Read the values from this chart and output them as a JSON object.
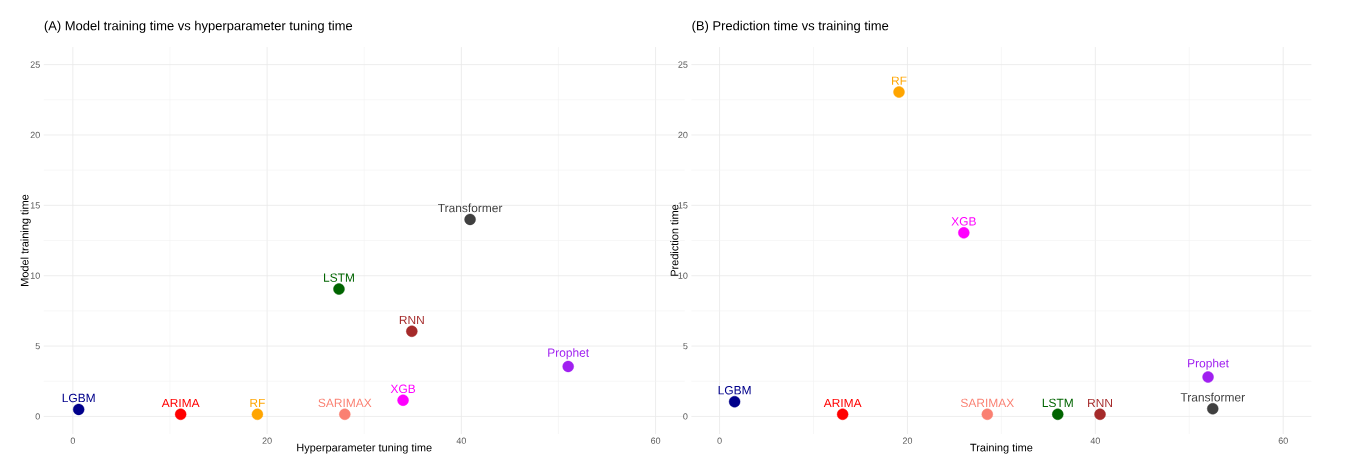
{
  "chart_data": [
    {
      "type": "scatter",
      "title": "(A) Model training time vs hyperparameter tuning time",
      "xlabel": "Hyperparameter tuning time",
      "ylabel": "Model training time",
      "xlim": [
        -3,
        63
      ],
      "ylim": [
        -1.25,
        26.25
      ],
      "xticks": [
        0,
        20,
        40,
        60
      ],
      "yticks": [
        0,
        5,
        10,
        15,
        20,
        25
      ],
      "grid": true,
      "marker": "circle",
      "series": [
        {
          "name": "LGBM",
          "color": "#00008b",
          "x": [
            0.6
          ],
          "values": [
            0.5
          ]
        },
        {
          "name": "ARIMA",
          "color": "#ff0000",
          "x": [
            11.1
          ],
          "values": [
            0.15
          ]
        },
        {
          "name": "RF",
          "color": "#ffa500",
          "x": [
            19.0
          ],
          "values": [
            0.15
          ]
        },
        {
          "name": "SARIMAX",
          "color": "#fa8072",
          "x": [
            28.0
          ],
          "values": [
            0.15
          ]
        },
        {
          "name": "XGB",
          "color": "#ff00ff",
          "x": [
            34.0
          ],
          "values": [
            1.15
          ]
        },
        {
          "name": "LSTM",
          "color": "#006400",
          "x": [
            27.4
          ],
          "values": [
            9.05
          ]
        },
        {
          "name": "RNN",
          "color": "#a52a2a",
          "x": [
            34.9
          ],
          "values": [
            6.05
          ]
        },
        {
          "name": "Transformer",
          "color": "#404040",
          "x": [
            40.9
          ],
          "values": [
            14.0
          ]
        },
        {
          "name": "Prophet",
          "color": "#a020f0",
          "x": [
            51.0
          ],
          "values": [
            3.55
          ]
        }
      ]
    },
    {
      "type": "scatter",
      "title": "(B) Prediction time vs training time",
      "xlabel": "Training time",
      "ylabel": "Prediction time",
      "xlim": [
        -3,
        63
      ],
      "ylim": [
        -1.25,
        26.25
      ],
      "xticks": [
        0,
        20,
        40,
        60
      ],
      "yticks": [
        0,
        5,
        10,
        15,
        20,
        25
      ],
      "grid": true,
      "marker": "circle",
      "series": [
        {
          "name": "LGBM",
          "color": "#00008b",
          "x": [
            1.6
          ],
          "values": [
            1.05
          ]
        },
        {
          "name": "ARIMA",
          "color": "#ff0000",
          "x": [
            13.1
          ],
          "values": [
            0.15
          ]
        },
        {
          "name": "RF",
          "color": "#ffa500",
          "x": [
            19.1
          ],
          "values": [
            23.05
          ]
        },
        {
          "name": "SARIMAX",
          "color": "#fa8072",
          "x": [
            28.5
          ],
          "values": [
            0.15
          ]
        },
        {
          "name": "XGB",
          "color": "#ff00ff",
          "x": [
            26.0
          ],
          "values": [
            13.05
          ]
        },
        {
          "name": "LSTM",
          "color": "#006400",
          "x": [
            36.0
          ],
          "values": [
            0.15
          ]
        },
        {
          "name": "RNN",
          "color": "#a52a2a",
          "x": [
            40.5
          ],
          "values": [
            0.15
          ]
        },
        {
          "name": "Transformer",
          "color": "#404040",
          "x": [
            52.5
          ],
          "values": [
            0.55
          ]
        },
        {
          "name": "Prophet",
          "color": "#a020f0",
          "x": [
            52.0
          ],
          "values": [
            2.8
          ]
        }
      ]
    }
  ]
}
